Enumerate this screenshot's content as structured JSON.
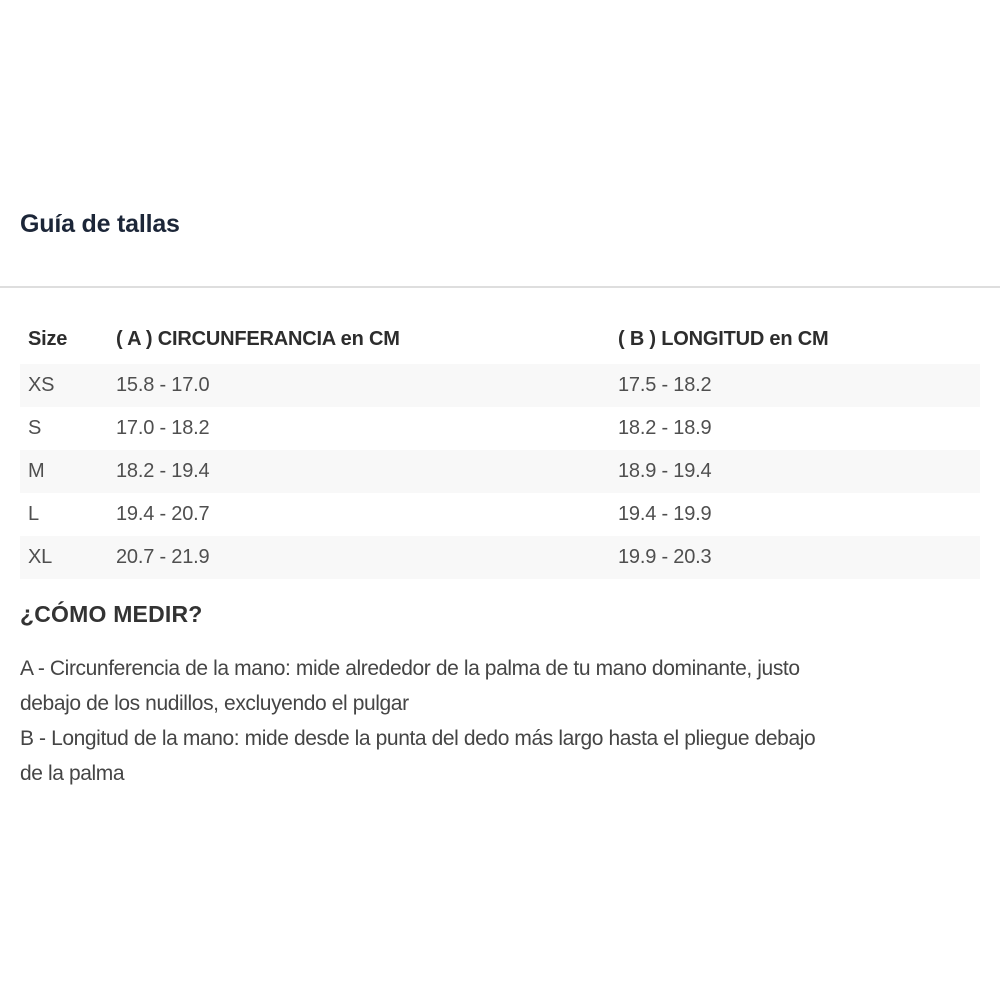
{
  "page": {
    "title": "Guía de tallas",
    "section_heading": "¿CÓMO MEDIR?"
  },
  "size_table": {
    "columns": [
      "Size",
      "( A ) CIRCUNFERANCIA en CM",
      "( B ) LONGITUD en CM"
    ],
    "rows": [
      {
        "size": "XS",
        "circumference": "15.8 - 17.0",
        "length": "17.5 - 18.2"
      },
      {
        "size": "S",
        "circumference": "17.0 - 18.2",
        "length": "18.2 - 18.9"
      },
      {
        "size": "M",
        "circumference": "18.2 - 19.4",
        "length": "18.9 - 19.4"
      },
      {
        "size": "L",
        "circumference": "19.4 - 20.7",
        "length": "19.4 - 19.9"
      },
      {
        "size": "XL",
        "circumference": "20.7 - 21.9",
        "length": "19.9 - 20.3"
      }
    ]
  },
  "instructions": [
    "A - Circunferencia de la mano: mide alrededor de la palma de tu mano dominante, justo\ndebajo de los nudillos, excluyendo el pulgar",
    "B - Longitud de la mano: mide desde la punta del dedo más largo hasta el pliegue debajo\nde la palma"
  ],
  "colors": {
    "title_text": "#1c2638",
    "header_text": "#2d2d2d",
    "cell_text": "#4f4f4f",
    "body_text": "#454545",
    "row_stripe_bg": "#f8f8f8",
    "divider": "#dedede",
    "background": "#ffffff"
  }
}
